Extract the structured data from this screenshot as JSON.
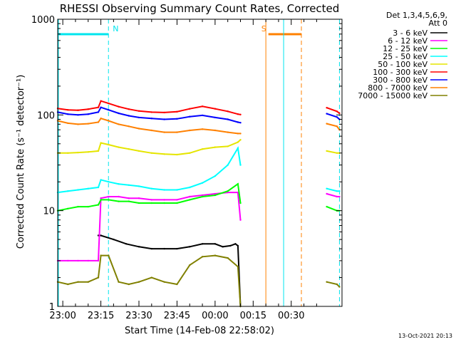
{
  "chart_data": {
    "type": "line",
    "title": "RHESSI Observing Summary Count Rates, Corrected",
    "xlabel": "Start Time (14-Feb-08 22:58:02)",
    "ylabel": "Corrected Count Rate (s⁻¹ detector⁻¹)",
    "y_scale": "log",
    "ylim": [
      1,
      1000
    ],
    "y_ticks": [
      "1",
      "10",
      "100",
      "1000"
    ],
    "x_ticks": [
      "23:00",
      "23:15",
      "23:30",
      "23:45",
      "00:00",
      "00:15",
      "00:30"
    ],
    "x_ticks_minutes": [
      0,
      15,
      30,
      45,
      60,
      75,
      90
    ],
    "xlim_minutes": [
      -2,
      110
    ],
    "legend": {
      "position": "top-right",
      "header": [
        "Det 1,3,4,5,6,9,",
        "Att 0"
      ]
    },
    "annotations": {
      "flags": [
        {
          "label": "N",
          "color": "#00e5ee",
          "start_min": -2,
          "end_min": 18,
          "dashed_at_min": 18
        },
        {
          "label": "S",
          "color": "#ff8000",
          "start_min": 81,
          "end_min": 94,
          "dashed_at_min": 94
        }
      ],
      "solid_markers_min": [
        80,
        87
      ],
      "dashed_markers_min": [
        109
      ]
    },
    "series": [
      {
        "name": "3 - 6 keV",
        "color": "#000000",
        "x": [
          14,
          15,
          20,
          25,
          30,
          35,
          40,
          45,
          50,
          55,
          60,
          63,
          66,
          68,
          69,
          70
        ],
        "y": [
          5.5,
          5.5,
          5,
          4.5,
          4.2,
          4,
          4,
          4,
          4.2,
          4.5,
          4.5,
          4.2,
          4.3,
          4.5,
          4.3,
          1
        ]
      },
      {
        "name": "6 - 12 keV",
        "color": "#ff00ff",
        "x": [
          -2,
          2,
          6,
          10,
          14,
          15,
          18,
          22,
          26,
          30,
          35,
          40,
          45,
          50,
          55,
          60,
          65,
          69,
          70,
          104,
          108,
          109
        ],
        "y": [
          3,
          3,
          3,
          3,
          3,
          13.5,
          14,
          14,
          13.5,
          13.5,
          13,
          13,
          13,
          14,
          14.5,
          15,
          15.5,
          15.5,
          8,
          15,
          14,
          14
        ]
      },
      {
        "name": "12 - 25 keV",
        "color": "#00ff00",
        "x": [
          -2,
          2,
          6,
          10,
          14,
          15,
          18,
          22,
          26,
          30,
          35,
          40,
          45,
          50,
          55,
          60,
          65,
          69,
          70,
          104,
          108,
          109
        ],
        "y": [
          10,
          10.5,
          11,
          11,
          11.5,
          13,
          13,
          12.5,
          12.5,
          12,
          12,
          12,
          12,
          13,
          14,
          14.5,
          16,
          19,
          12,
          11,
          10,
          10
        ]
      },
      {
        "name": "25 - 50 keV",
        "color": "#00ffff",
        "x": [
          -2,
          2,
          6,
          10,
          14,
          15,
          18,
          22,
          26,
          30,
          35,
          40,
          45,
          50,
          55,
          60,
          65,
          69,
          70,
          104,
          108,
          109
        ],
        "y": [
          15.5,
          16,
          16.5,
          17,
          17.5,
          21,
          20,
          19,
          18.5,
          18,
          17,
          16.5,
          16.5,
          17.5,
          19.5,
          23,
          30,
          45,
          30,
          17,
          16,
          16
        ]
      },
      {
        "name": "50 - 100 keV",
        "color": "#e5e500",
        "x": [
          -2,
          2,
          6,
          10,
          14,
          15,
          18,
          22,
          26,
          30,
          35,
          40,
          45,
          50,
          55,
          60,
          65,
          69,
          70,
          104,
          108,
          109
        ],
        "y": [
          40,
          40,
          40.5,
          41,
          42,
          51,
          49,
          46,
          44,
          42,
          40,
          39,
          38.5,
          40,
          44,
          46,
          47,
          52,
          55,
          42,
          40,
          40
        ]
      },
      {
        "name": "100 - 300 keV",
        "color": "#ff0000",
        "x": [
          -2,
          2,
          6,
          10,
          14,
          15,
          18,
          22,
          26,
          30,
          35,
          40,
          45,
          50,
          55,
          60,
          65,
          69,
          70,
          104,
          108,
          109
        ],
        "y": [
          117,
          113,
          112,
          115,
          120,
          140,
          132,
          122,
          115,
          110,
          107,
          106,
          108,
          116,
          123,
          116,
          109,
          102,
          101,
          119,
          109,
          104
        ]
      },
      {
        "name": "300 - 800 keV",
        "color": "#0000ff",
        "x": [
          -2,
          2,
          6,
          10,
          14,
          15,
          18,
          22,
          26,
          30,
          35,
          40,
          45,
          50,
          55,
          60,
          65,
          69,
          70,
          104,
          108,
          109
        ],
        "y": [
          107,
          102,
          100,
          102,
          107,
          120,
          113,
          104,
          98,
          94,
          92,
          90,
          91,
          96,
          99,
          94,
          90,
          84,
          83,
          103,
          95,
          90
        ]
      },
      {
        "name": "800 - 7000 keV",
        "color": "#ff8000",
        "x": [
          -2,
          2,
          6,
          10,
          14,
          15,
          18,
          22,
          26,
          30,
          35,
          40,
          45,
          50,
          55,
          60,
          65,
          69,
          70,
          104,
          108,
          109
        ],
        "y": [
          87,
          82,
          80,
          81,
          84,
          92,
          87,
          80,
          76,
          72,
          69,
          66,
          66,
          69,
          71,
          69,
          66,
          64,
          64,
          81,
          76,
          70
        ]
      },
      {
        "name": "7000 - 15000 keV",
        "color": "#808000",
        "x": [
          -2,
          2,
          6,
          10,
          14,
          15,
          18,
          22,
          26,
          30,
          35,
          40,
          45,
          50,
          55,
          60,
          65,
          69,
          70,
          104,
          108,
          109
        ],
        "y": [
          1.8,
          1.7,
          1.8,
          1.8,
          2,
          3.4,
          3.4,
          1.8,
          1.7,
          1.8,
          2,
          1.8,
          1.7,
          2.7,
          3.3,
          3.4,
          3.2,
          2.6,
          1,
          1.8,
          1.7,
          1.6
        ]
      }
    ]
  },
  "footer": {
    "date_stamp": "13-Oct-2021 20:13"
  }
}
